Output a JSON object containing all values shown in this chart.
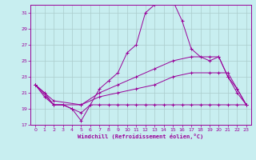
{
  "xlabel": "Windchill (Refroidissement éolien,°C)",
  "xlim": [
    -0.5,
    23.5
  ],
  "ylim": [
    17,
    32
  ],
  "yticks": [
    17,
    19,
    21,
    23,
    25,
    27,
    29,
    31
  ],
  "xticks": [
    0,
    1,
    2,
    3,
    4,
    5,
    6,
    7,
    8,
    9,
    10,
    11,
    12,
    13,
    14,
    15,
    16,
    17,
    18,
    19,
    20,
    21,
    22,
    23
  ],
  "bg_color": "#c8eef0",
  "line_color": "#990099",
  "grid_color": "#aacccc",
  "lines": [
    {
      "x": [
        0,
        1,
        2,
        3,
        4,
        5,
        6,
        7,
        8,
        9,
        10,
        11,
        12,
        13,
        14,
        15,
        16,
        17,
        18,
        19,
        20,
        21,
        22,
        23
      ],
      "y": [
        22,
        20.5,
        19.5,
        19.5,
        19,
        17.5,
        19.5,
        21.5,
        22.5,
        23.5,
        26,
        27,
        31,
        32,
        32.5,
        32.5,
        30,
        26.5,
        25.5,
        25,
        25.5,
        23,
        21,
        19.5
      ]
    },
    {
      "x": [
        0,
        2,
        5,
        7,
        9,
        11,
        13,
        15,
        17,
        19,
        20,
        21,
        22,
        23
      ],
      "y": [
        22,
        20,
        19.5,
        21,
        22,
        23,
        24,
        25,
        25.5,
        25.5,
        25.5,
        23,
        21.5,
        19.5
      ]
    },
    {
      "x": [
        0,
        2,
        5,
        7,
        9,
        11,
        13,
        15,
        17,
        19,
        20,
        21,
        22,
        23
      ],
      "y": [
        22,
        19.5,
        19.5,
        20.5,
        21,
        21.5,
        22,
        23,
        23.5,
        23.5,
        23.5,
        23.5,
        21.5,
        19.5
      ]
    },
    {
      "x": [
        0,
        1,
        2,
        3,
        4,
        5,
        6,
        7,
        8,
        9,
        10,
        11,
        12,
        13,
        14,
        15,
        16,
        17,
        18,
        19,
        20,
        21,
        22,
        23
      ],
      "y": [
        22,
        21,
        19.5,
        19.5,
        19,
        18.5,
        19.5,
        19.5,
        19.5,
        19.5,
        19.5,
        19.5,
        19.5,
        19.5,
        19.5,
        19.5,
        19.5,
        19.5,
        19.5,
        19.5,
        19.5,
        19.5,
        19.5,
        19.5
      ]
    }
  ]
}
